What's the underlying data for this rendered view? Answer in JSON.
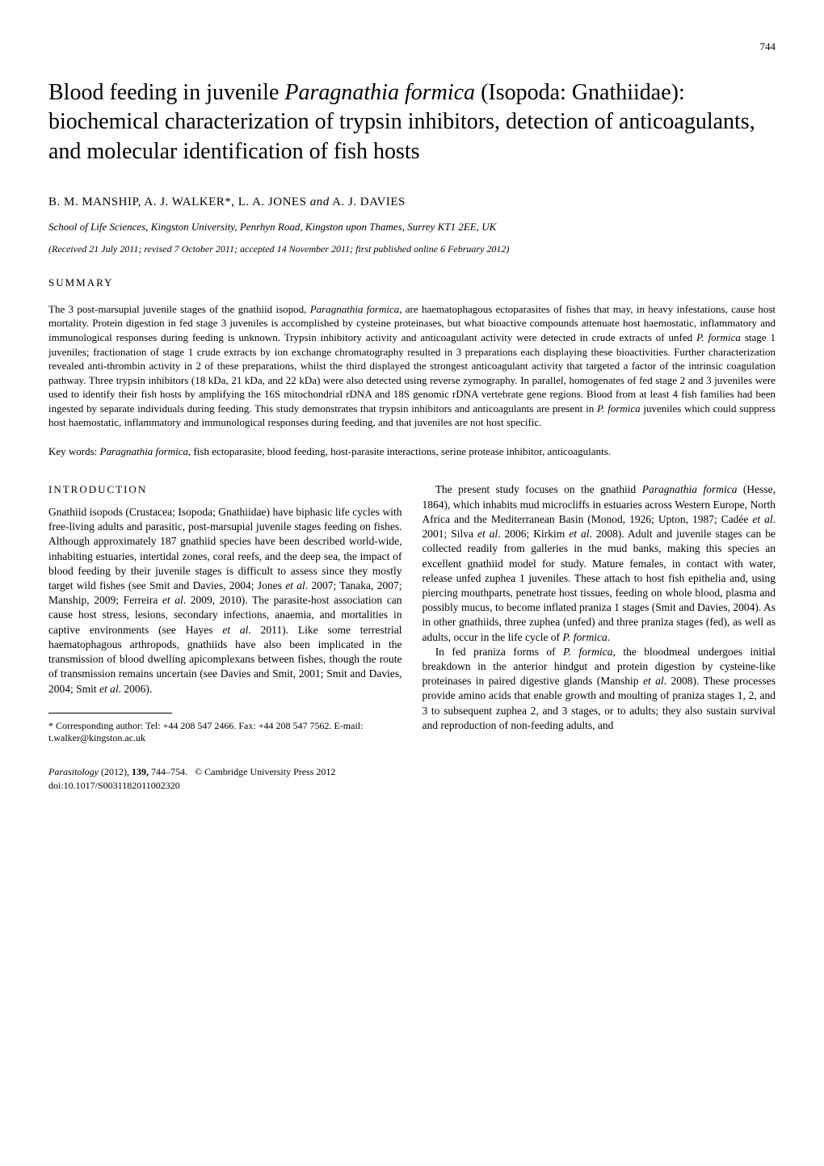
{
  "page_number": "744",
  "title": {
    "text": "Blood feeding in juvenile Paragnathia formica (Isopoda: Gnathiidae): biochemical characterization of trypsin inhibitors, detection of anticoagulants, and molecular identification of fish hosts",
    "fontsize": 28
  },
  "authors": "B. M. MANSHIP, A. J. WALKER*, L. A. JONES and A. J. DAVIES",
  "affiliation": "School of Life Sciences, Kingston University, Penrhyn Road, Kingston upon Thames, Surrey KT1 2EE, UK",
  "received": "(Received 21 July 2011; revised 7 October 2011; accepted 14 November 2011; first published online 6 February 2012)",
  "summary_heading": "SUMMARY",
  "summary_text": "The 3 post-marsupial juvenile stages of the gnathiid isopod, Paragnathia formica, are haematophagous ectoparasites of fishes that may, in heavy infestations, cause host mortality. Protein digestion in fed stage 3 juveniles is accomplished by cysteine proteinases, but what bioactive compounds attenuate host haemostatic, inflammatory and immunological responses during feeding is unknown. Trypsin inhibitory activity and anticoagulant activity were detected in crude extracts of unfed P. formica stage 1 juveniles; fractionation of stage 1 crude extracts by ion exchange chromatography resulted in 3 preparations each displaying these bioactivities. Further characterization revealed anti-thrombin activity in 2 of these preparations, whilst the third displayed the strongest anticoagulant activity that targeted a factor of the intrinsic coagulation pathway. Three trypsin inhibitors (18 kDa, 21 kDa, and 22 kDa) were also detected using reverse zymography. In parallel, homogenates of fed stage 2 and 3 juveniles were used to identify their fish hosts by amplifying the 16S mitochondrial rDNA and 18S genomic rDNA vertebrate gene regions. Blood from at least 4 fish families had been ingested by separate individuals during feeding. This study demonstrates that trypsin inhibitors and anticoagulants are present in P. formica juveniles which could suppress host haemostatic, inflammatory and immunological responses during feeding, and that juveniles are not host specific.",
  "keywords": "Key words: Paragnathia formica, fish ectoparasite, blood feeding, host-parasite interactions, serine protease inhibitor, anticoagulants.",
  "intro_heading": "INTRODUCTION",
  "left_column": {
    "para1": "Gnathiid isopods (Crustacea; Isopoda; Gnathiidae) have biphasic life cycles with free-living adults and parasitic, post-marsupial juvenile stages feeding on fishes. Although approximately 187 gnathiid species have been described world-wide, inhabiting estuaries, intertidal zones, coral reefs, and the deep sea, the impact of blood feeding by their juvenile stages is difficult to assess since they mostly target wild fishes (see Smit and Davies, 2004; Jones et al. 2007; Tanaka, 2007; Manship, 2009; Ferreira et al. 2009, 2010). The parasite-host association can cause host stress, lesions, secondary infections, anaemia, and mortalities in captive environments (see Hayes et al. 2011). Like some terrestrial haematophagous arthropods, gnathiids have also been implicated in the transmission of blood dwelling apicomplexans between fishes, though the route of transmission remains uncertain (see Davies and Smit, 2001; Smit and Davies, 2004; Smit et al. 2006)."
  },
  "right_column": {
    "para1": "The present study focuses on the gnathiid Paragnathia formica (Hesse, 1864), which inhabits mud microcliffs in estuaries across Western Europe, North Africa and the Mediterranean Basin (Monod, 1926; Upton, 1987; Cadée et al. 2001; Silva et al. 2006; Kirkim et al. 2008). Adult and juvenile stages can be collected readily from galleries in the mud banks, making this species an excellent gnathiid model for study. Mature females, in contact with water, release unfed zuphea 1 juveniles. These attach to host fish epithelia and, using piercing mouthparts, penetrate host tissues, feeding on whole blood, plasma and possibly mucus, to become inflated praniza 1 stages (Smit and Davies, 2004). As in other gnathiids, three zuphea (unfed) and three praniza stages (fed), as well as adults, occur in the life cycle of P. formica.",
    "para2": "In fed praniza forms of P. formica, the bloodmeal undergoes initial breakdown in the anterior hindgut and protein digestion by cysteine-like proteinases in paired digestive glands (Manship et al. 2008). These processes provide amino acids that enable growth and moulting of praniza stages 1, 2, and 3 to subsequent zuphea 2, and 3 stages, or to adults; they also sustain survival and reproduction of non-feeding adults, and"
  },
  "footnote": "* Corresponding author: Tel: +44 208 547 2466. Fax: +44 208 547 7562. E-mail: t.walker@kingston.ac.uk",
  "journal": {
    "name": "Parasitology",
    "year": "(2012),",
    "volume": "139,",
    "pages": "744–754.",
    "copyright": "© Cambridge University Press 2012",
    "doi": "doi:10.1017/S0031182011002320"
  },
  "colors": {
    "text": "#000000",
    "background": "#ffffff",
    "link": "#0066aa"
  }
}
